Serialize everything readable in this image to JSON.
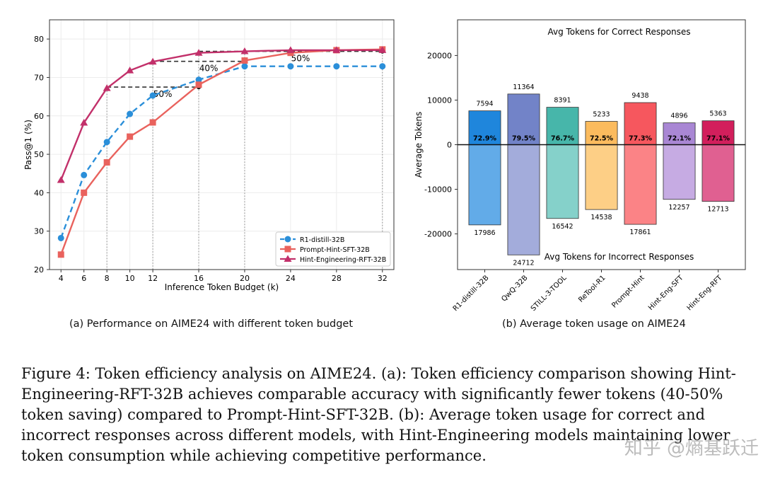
{
  "caption_a": "(a) Performance on AIME24 with different token budget",
  "caption_b": "(b) Average token usage on AIME24",
  "figure_caption": "Figure 4: Token efficiency analysis on AIME24. (a): Token efficiency comparison showing Hint-Engineering-RFT-32B achieves comparable accuracy with significantly fewer tokens (40-50% token saving) compared to Prompt-Hint-SFT-32B. (b): Average token usage for correct and incorrect responses across different models, with Hint-Engineering models maintaining lower token consumption while achieving competitive performance.",
  "watermark": "知乎 @熵基跃迁",
  "chart_data": [
    {
      "type": "line",
      "title": "",
      "xlabel": "Inference Token Budget (k)",
      "ylabel": "Pass@1 (%)",
      "x": [
        4,
        6,
        8,
        10,
        12,
        16,
        20,
        24,
        28,
        32
      ],
      "xticks": [
        "4",
        "6",
        "8",
        "10",
        "12",
        "16",
        "20",
        "24",
        "28",
        "32"
      ],
      "ylim": [
        20,
        85
      ],
      "yticks": [
        20,
        30,
        40,
        50,
        60,
        70,
        80
      ],
      "grid": true,
      "legend_position": "bottom-right",
      "series": [
        {
          "name": "R1-distill-32B",
          "color": "#2b8fd9",
          "marker": "circle",
          "style": "dashed",
          "values": [
            28.2,
            44.6,
            53.2,
            60.5,
            65.3,
            69.4,
            72.9,
            72.9,
            72.9,
            72.9
          ]
        },
        {
          "name": "Prompt-Hint-SFT-32B",
          "color": "#e9625d",
          "marker": "square",
          "style": "solid",
          "values": [
            23.9,
            40.0,
            47.9,
            54.6,
            58.3,
            68.1,
            74.4,
            76.4,
            77.1,
            77.3
          ]
        },
        {
          "name": "Hint-Engineering-RFT-32B",
          "color": "#c2306a",
          "marker": "triangle",
          "style": "solid",
          "values": [
            43.3,
            58.2,
            67.2,
            71.8,
            74.1,
            76.4,
            76.8,
            77.1,
            77.1,
            77.1
          ]
        }
      ],
      "annotations": [
        {
          "text": "50%",
          "from_x": 8,
          "to_x": 16,
          "y": 67.5
        },
        {
          "text": "40%",
          "from_x": 12,
          "to_x": 20,
          "y": 74.2
        },
        {
          "text": "50%",
          "from_x": 16,
          "to_x": 32,
          "y": 76.8
        }
      ]
    },
    {
      "type": "bar",
      "ylabel": "Average Tokens",
      "ylim": [
        -28000,
        28000
      ],
      "yticks": [
        -20000,
        -10000,
        0,
        10000,
        20000
      ],
      "top_label": "Avg Tokens for Correct Responses",
      "bottom_label": "Avg Tokens for Incorrect Responses",
      "categories": [
        "R1-distill-32B",
        "QwQ-32B",
        "STILL-3-TOOL",
        "ReTool-R1",
        "Prompt-Hint",
        "Hint-Eng-SFT",
        "Hint-Eng-RFT"
      ],
      "correct": [
        7594,
        11364,
        8391,
        5233,
        9438,
        4896,
        5363
      ],
      "incorrect": [
        17986,
        24712,
        16542,
        14538,
        17861,
        12257,
        12713
      ],
      "accuracy": [
        "72.9%",
        "79.5%",
        "76.7%",
        "72.5%",
        "77.3%",
        "72.1%",
        "77.1%"
      ],
      "colors_correct": [
        "#1f86dc",
        "#7283c8",
        "#47b6aa",
        "#fbbb5e",
        "#f6575e",
        "#a987d4",
        "#d21f5c"
      ],
      "colors_incorrect": [
        "#62abe8",
        "#a3acdb",
        "#85d1ca",
        "#fdcf86",
        "#fb8386",
        "#c6abe3",
        "#e06091"
      ]
    }
  ]
}
